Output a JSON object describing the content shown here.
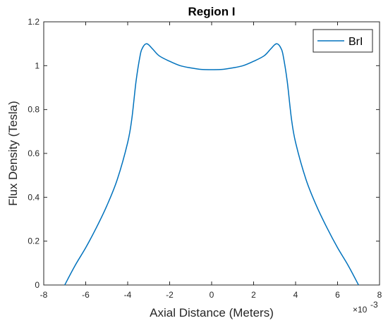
{
  "chart_data": {
    "type": "line",
    "title": "Region I",
    "xlabel": "Axial Distance (Meters)",
    "ylabel": "Flux Density (Tesla)",
    "x_exponent_label": "×10",
    "x_exponent_power": "-3",
    "xlim": [
      -8,
      8
    ],
    "ylim": [
      0,
      1.2
    ],
    "xticks": [
      "-8",
      "-6",
      "-4",
      "-2",
      "0",
      "2",
      "4",
      "6",
      "8"
    ],
    "yticks": [
      "0",
      "0.2",
      "0.4",
      "0.6",
      "0.8",
      "1",
      "1.2"
    ],
    "legend_position": "top-right",
    "colors": {
      "series": "#0072BD",
      "axis": "#262626"
    },
    "series": [
      {
        "name": "BrI",
        "x": [
          -7.0,
          -6.5,
          -6.0,
          -5.5,
          -5.0,
          -4.5,
          -4.0,
          -3.8,
          -3.6,
          -3.4,
          -3.3,
          -3.2,
          -3.1,
          -3.0,
          -2.8,
          -2.5,
          -2.0,
          -1.5,
          -1.0,
          -0.5,
          0.0,
          0.5,
          1.0,
          1.5,
          2.0,
          2.5,
          2.8,
          3.0,
          3.1,
          3.2,
          3.3,
          3.4,
          3.6,
          3.8,
          4.0,
          4.5,
          5.0,
          5.5,
          6.0,
          6.5,
          7.0
        ],
        "y": [
          0.0,
          0.09,
          0.17,
          0.26,
          0.36,
          0.48,
          0.65,
          0.76,
          0.93,
          1.05,
          1.08,
          1.095,
          1.1,
          1.095,
          1.075,
          1.045,
          1.02,
          1.0,
          0.99,
          0.983,
          0.982,
          0.983,
          0.99,
          1.0,
          1.02,
          1.045,
          1.075,
          1.095,
          1.1,
          1.095,
          1.08,
          1.05,
          0.93,
          0.76,
          0.65,
          0.48,
          0.36,
          0.26,
          0.17,
          0.09,
          0.0
        ]
      }
    ]
  }
}
